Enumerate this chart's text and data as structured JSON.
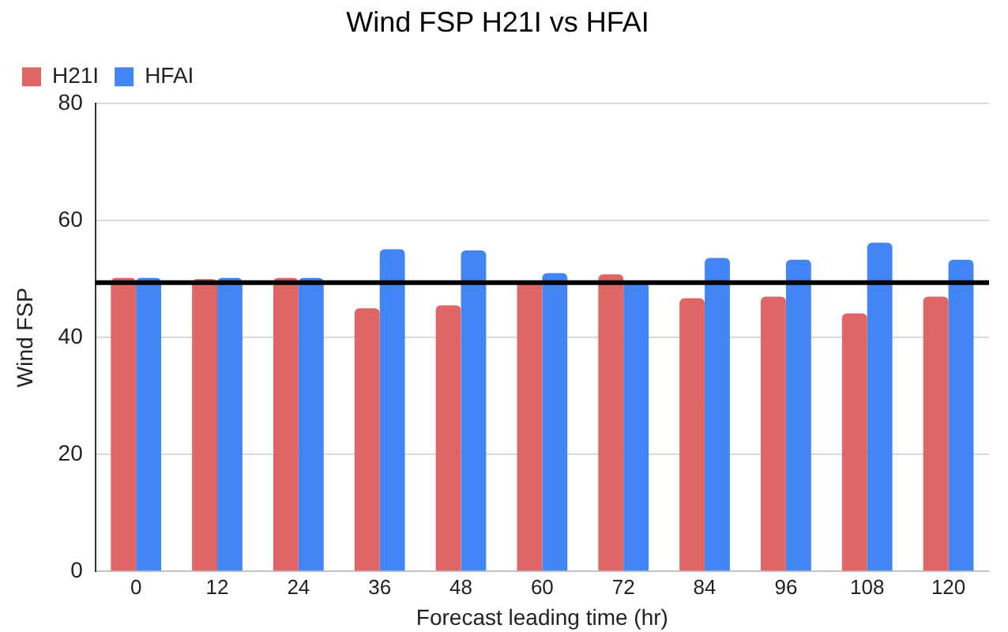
{
  "chart_data": {
    "type": "bar",
    "title": "Wind FSP H21I vs HFAI",
    "xlabel": "Forecast leading time (hr)",
    "ylabel": "Wind FSP",
    "categories": [
      "0",
      "12",
      "24",
      "36",
      "48",
      "60",
      "72",
      "84",
      "96",
      "108",
      "120"
    ],
    "series": [
      {
        "name": "H21I",
        "color": "#e06666",
        "values": [
          50.2,
          50.0,
          50.2,
          45.0,
          45.5,
          49.5,
          50.8,
          46.7,
          47.0,
          44.1,
          47.0
        ]
      },
      {
        "name": "HFAI",
        "color": "#4285f4",
        "values": [
          50.2,
          50.2,
          50.2,
          55.1,
          54.9,
          51.0,
          49.5,
          53.6,
          53.3,
          56.2,
          53.3
        ]
      }
    ],
    "ylim": [
      0,
      80
    ],
    "yticks": [
      0,
      20,
      40,
      60,
      80
    ],
    "grid": "y",
    "legend": "top left",
    "ref_lines": [
      {
        "axis": "y",
        "value": 49.4,
        "color": "#000000"
      }
    ]
  }
}
